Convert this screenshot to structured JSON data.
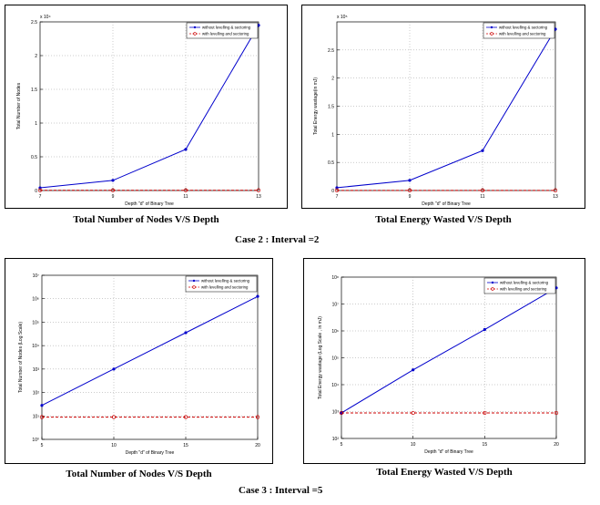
{
  "captions": {
    "c1": "Total Number of Nodes V/S Depth",
    "c2": "Total Energy Wasted V/S Depth",
    "case2": "Case 2 : Interval =2",
    "c3": "Total Number of Nodes V/S Depth",
    "c4": "Total Energy Wasted V/S Depth",
    "case3": "Case 3 : Interval =5"
  },
  "chart_data": [
    {
      "type": "line",
      "title": "",
      "xlabel": "Depth \"d\" of Binary Tree",
      "ylabel": "Total Number of Nodes",
      "exponent": "x 10⁴",
      "x": [
        7,
        9,
        11,
        13
      ],
      "xlim": [
        7,
        13
      ],
      "xticks": [
        "7",
        "9",
        "11",
        "13"
      ],
      "ylim": [
        0,
        2.5
      ],
      "yticks": [
        0,
        0.5,
        1,
        1.5,
        2,
        2.5
      ],
      "yticklabels": [
        "0",
        "0.5",
        "1",
        "1.5",
        "2",
        "2.5"
      ],
      "yscale": "linear",
      "legend": "top-right",
      "series": [
        {
          "name": "without levelling & sectoring",
          "values": [
            0.04,
            0.15,
            0.61,
            2.45
          ],
          "color": "#0000cc",
          "style": "solid",
          "marker": "dot"
        },
        {
          "name": "with levelling and sectoring",
          "values": [
            0.003,
            0.003,
            0.003,
            0.003
          ],
          "color": "#cc0000",
          "style": "dashed",
          "marker": "circle"
        }
      ]
    },
    {
      "type": "line",
      "title": "",
      "xlabel": "Depth \"d\" of Binary Tree",
      "ylabel": "Total Energy wastage(in mJ)",
      "exponent": "x 10⁵",
      "x": [
        7,
        9,
        11,
        13
      ],
      "xlim": [
        7,
        13
      ],
      "xticks": [
        "7",
        "9",
        "11",
        "13"
      ],
      "ylim": [
        0,
        3
      ],
      "yticks": [
        0,
        0.5,
        1,
        1.5,
        2,
        2.5
      ],
      "yticklabels": [
        "0",
        "0.5",
        "1",
        "1.5",
        "2",
        "2.5"
      ],
      "yscale": "linear",
      "legend": "top-right",
      "series": [
        {
          "name": "without levelling & sectoring",
          "values": [
            0.05,
            0.18,
            0.71,
            2.87
          ],
          "color": "#0000cc",
          "style": "solid",
          "marker": "dot"
        },
        {
          "name": "with levelling and sectoring",
          "values": [
            0.003,
            0.003,
            0.003,
            0.003
          ],
          "color": "#cc0000",
          "style": "dashed",
          "marker": "circle"
        }
      ]
    },
    {
      "type": "line",
      "title": "",
      "xlabel": "Depth \"d\" of Binary Tree",
      "ylabel": "Total Number of Nodes (Log Scale)",
      "exponent": "",
      "x": [
        5,
        10,
        15,
        20
      ],
      "xlim": [
        5,
        20
      ],
      "xticks": [
        "5",
        "10",
        "15",
        "20"
      ],
      "ylim": [
        0,
        7
      ],
      "yticks": [
        0,
        1,
        2,
        3,
        4,
        5,
        6,
        7
      ],
      "yticklabels": [
        "10⁰",
        "10¹",
        "10²",
        "10³",
        "10⁴",
        "10⁵",
        "10⁶",
        "10⁷"
      ],
      "yscale": "log10",
      "legend": "top-right",
      "series": [
        {
          "name": "without levelling & sectoring",
          "values": [
            1.45,
            3.0,
            4.55,
            6.1
          ],
          "color": "#0000cc",
          "style": "solid",
          "marker": "dot"
        },
        {
          "name": "with levelling and sectoring",
          "values": [
            0.95,
            0.95,
            0.95,
            0.95
          ],
          "color": "#cc0000",
          "style": "dashed",
          "marker": "circle"
        }
      ]
    },
    {
      "type": "line",
      "title": "",
      "xlabel": "Depth \"d\" of Binary Tree",
      "ylabel": "Total Energy wastage (Log Scale , in mJ)",
      "exponent": "",
      "x": [
        5,
        10,
        15,
        20
      ],
      "xlim": [
        5,
        20
      ],
      "xticks": [
        "5",
        "10",
        "15",
        "20"
      ],
      "ylim": [
        0,
        6
      ],
      "yticks": [
        0,
        1,
        2,
        3,
        4,
        5,
        6
      ],
      "yticklabels": [
        "10²",
        "10³",
        "10⁴",
        "10⁵",
        "10⁶",
        "10⁷",
        "10⁸"
      ],
      "yscale": "log10",
      "legend": "top-right",
      "series": [
        {
          "name": "without levelling & sectoring",
          "values": [
            0.95,
            2.55,
            4.05,
            5.6
          ],
          "color": "#0000cc",
          "style": "solid",
          "marker": "dot"
        },
        {
          "name": "with levelling and sectoring",
          "values": [
            0.95,
            0.95,
            0.95,
            0.95
          ],
          "color": "#cc0000",
          "style": "dashed",
          "marker": "circle"
        }
      ]
    }
  ]
}
